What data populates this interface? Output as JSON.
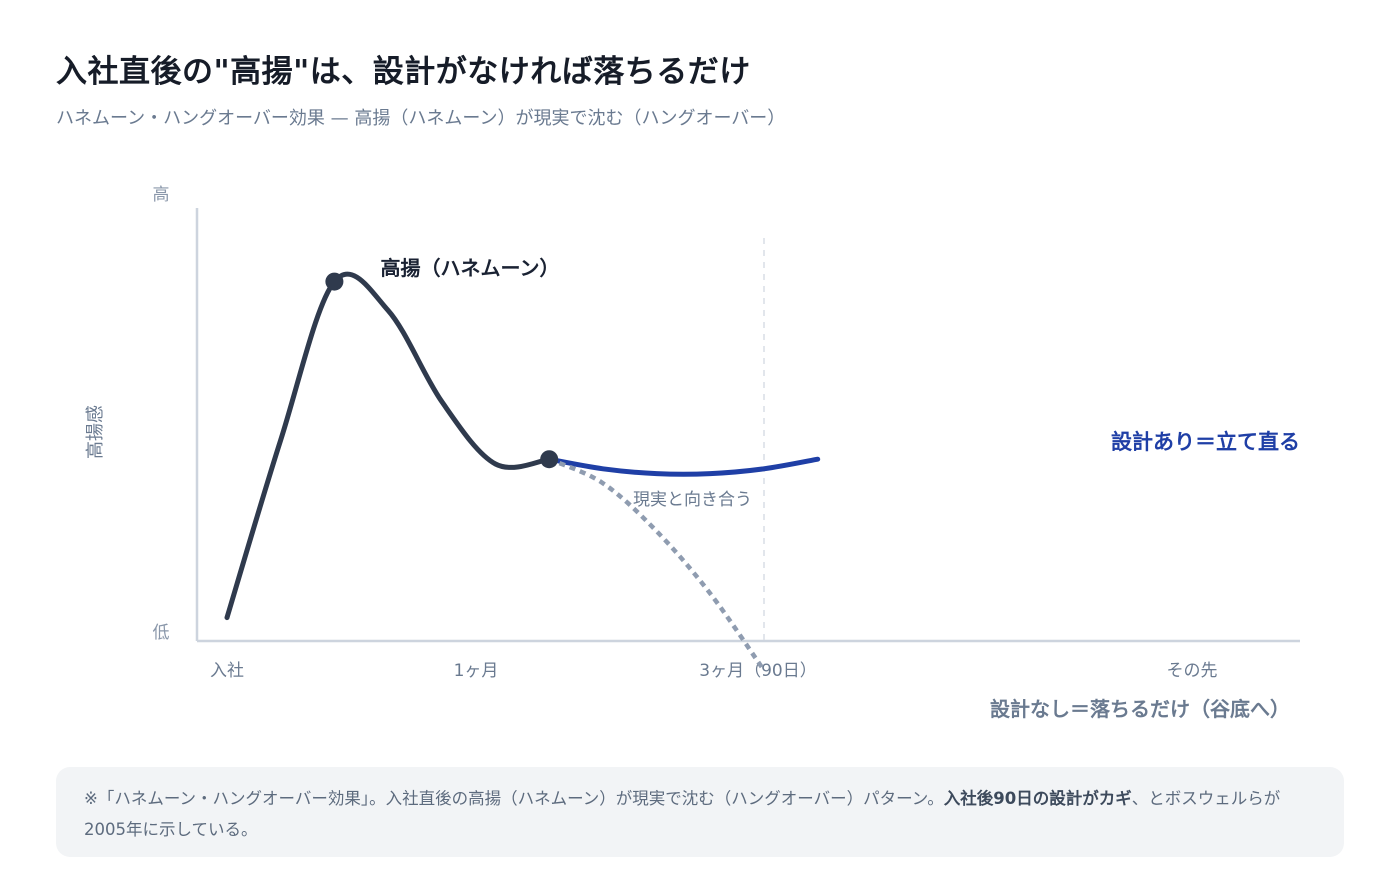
{
  "header": {
    "title": "入社直後の\"高揚\"は、設計がなければ落ちるだけ",
    "subtitle": "ハネムーン・ハングオーバー効果 — 高揚（ハネムーン）が現実で沈む（ハングオーバー）"
  },
  "chart_data": {
    "type": "line",
    "ylabel": "高揚感",
    "y_high_label": "高",
    "y_low_label": "低",
    "x_ticks": [
      "入社",
      "1ヶ月",
      "3ヶ月（90日）",
      "その先"
    ],
    "series": [
      {
        "name": "高揚（ハネムーン）",
        "color": "#2f3a4d",
        "style": "solid",
        "x": [
          0,
          0.5,
          1,
          1.5,
          2,
          2.5,
          3
        ],
        "y": [
          8,
          45,
          78,
          72,
          53,
          40,
          41
        ]
      },
      {
        "name": "設計あり＝立て直る",
        "color": "#1f3fa6",
        "style": "solid",
        "x": [
          3,
          3.5,
          4,
          4.5,
          5,
          5.5
        ],
        "y": [
          41,
          39,
          38,
          38,
          39,
          41
        ]
      },
      {
        "name": "設計なし＝落ちるだけ（谷底へ）",
        "color": "#8f9cb0",
        "style": "dotted",
        "x": [
          3,
          3.5,
          4,
          4.5,
          5
        ],
        "y": [
          41,
          36,
          26,
          13,
          -3
        ]
      }
    ],
    "annotations": [
      {
        "text": "高揚（ハネムーン）",
        "at": "peak"
      },
      {
        "text": "現実と向き合う",
        "at": "3ヶ月"
      }
    ],
    "ylim": [
      0,
      100
    ],
    "grid": false,
    "legend": "none"
  },
  "note": {
    "prefix": "※「ハネムーン・ハングオーバー効果」。入社直後の高揚（ハネムーン）が現実で沈む（ハングオーバー）パターン。",
    "emphasis": "入社後90日の設計がカギ",
    "suffix": "、とボスウェルらが2005年に示している。"
  }
}
